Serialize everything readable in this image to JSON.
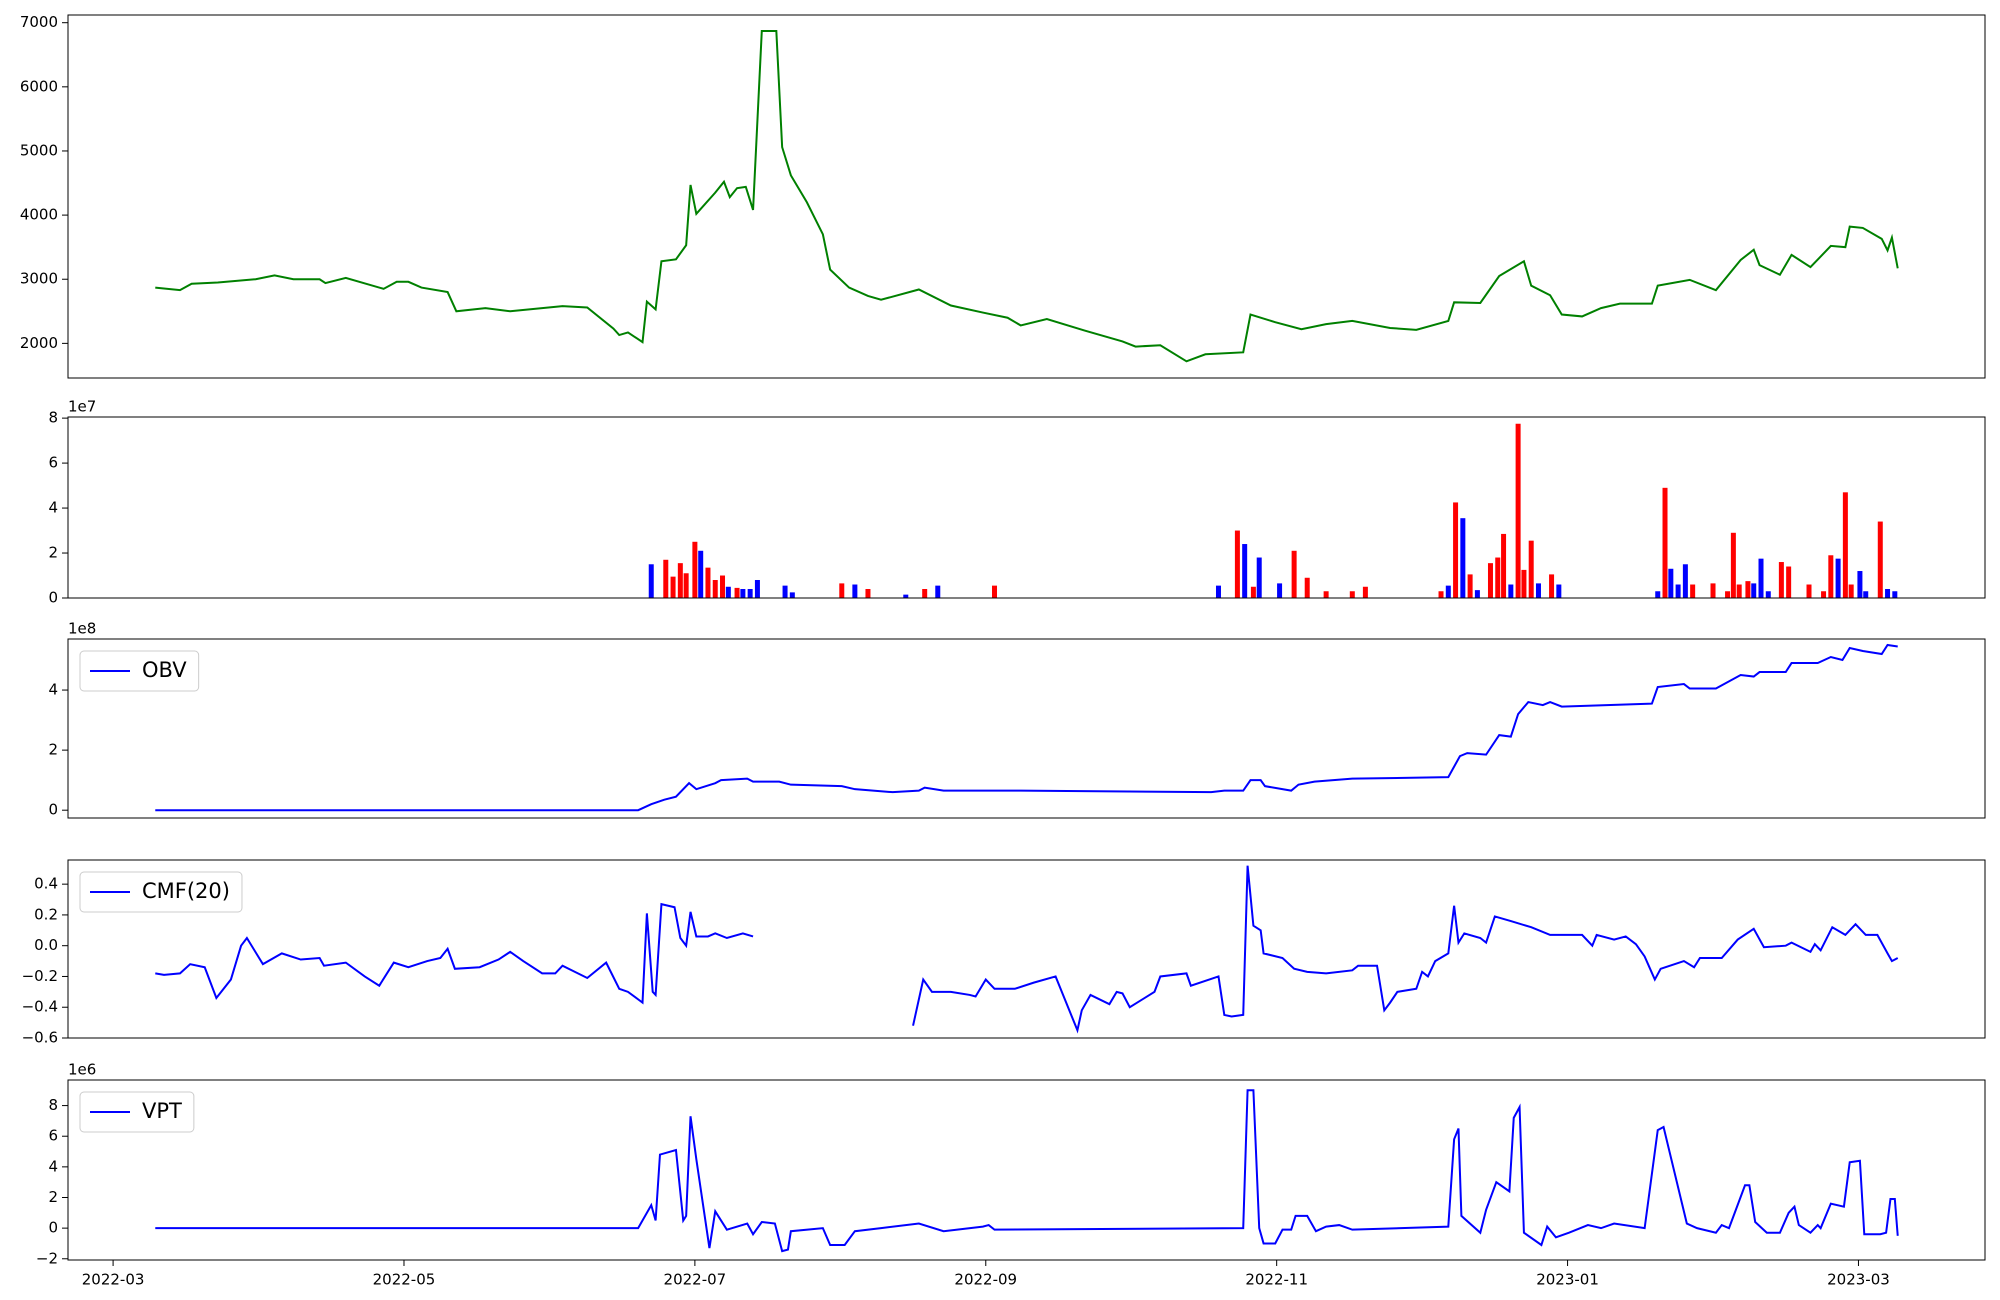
{
  "chart_data": [
    {
      "type": "line",
      "color": "green",
      "x": [
        0.29,
        0.46,
        0.54,
        0.72,
        0.98,
        1.11,
        1.24,
        1.42,
        1.46,
        1.6,
        1.86,
        1.95,
        2.03,
        2.12,
        2.3,
        2.36,
        2.56,
        2.73,
        3.09,
        3.26,
        3.44,
        3.48,
        3.54,
        3.64,
        3.67,
        3.73,
        3.77,
        3.87,
        3.94,
        3.97,
        4.01,
        4.14,
        4.2,
        4.24,
        4.29,
        4.35,
        4.4,
        4.46,
        4.56,
        4.6,
        4.66,
        4.77,
        4.88,
        4.93,
        5.06,
        5.19,
        5.28,
        5.54,
        5.76,
        5.98,
        6.15,
        6.24,
        6.42,
        6.68,
        6.94,
        7.03,
        7.2,
        7.38,
        7.51,
        7.77,
        7.82,
        7.99,
        8.17,
        8.34,
        8.52,
        8.78,
        8.96,
        9.18,
        9.22,
        9.4,
        9.53,
        9.7,
        9.75,
        9.88,
        9.96,
        10.1,
        10.23,
        10.36,
        10.58,
        10.62,
        10.84,
        11.02,
        11.19,
        11.28,
        11.32,
        11.46,
        11.54,
        11.67,
        11.73,
        11.81,
        11.91,
        11.94,
        12.03,
        12.16,
        12.2,
        12.23,
        12.27
      ],
      "values": [
        2870,
        2830,
        2930,
        2950,
        3000,
        3060,
        3000,
        3000,
        2940,
        3020,
        2850,
        2960,
        2960,
        2870,
        2800,
        2500,
        2550,
        2500,
        2580,
        2560,
        2230,
        2130,
        2170,
        2020,
        2650,
        2530,
        3280,
        3310,
        3530,
        4470,
        4020,
        4350,
        4520,
        4280,
        4420,
        4440,
        4080,
        6870,
        6870,
        5060,
        4620,
        4200,
        3700,
        3150,
        2870,
        2740,
        2680,
        2840,
        2590,
        2480,
        2400,
        2280,
        2380,
        2200,
        2030,
        1950,
        1970,
        1720,
        1830,
        1860,
        2450,
        2330,
        2220,
        2300,
        2350,
        2240,
        2210,
        2350,
        2640,
        2630,
        3050,
        3280,
        2900,
        2750,
        2450,
        2420,
        2550,
        2620,
        2620,
        2900,
        2990,
        2830,
        3300,
        3460,
        3220,
        3070,
        3380,
        3190,
        3330,
        3520,
        3500,
        3820,
        3800,
        3630,
        3450,
        3650,
        3170
      ],
      "xlim": [
        -0.31,
        12.87
      ],
      "ylim": [
        1460,
        7120
      ],
      "yticks": [
        2000,
        3000,
        4000,
        5000,
        6000,
        7000
      ]
    },
    {
      "type": "bar",
      "offset_label": "1e7",
      "x": [
        3.7,
        3.8,
        3.85,
        3.9,
        3.94,
        4.0,
        4.04,
        4.09,
        4.14,
        4.19,
        4.23,
        4.29,
        4.33,
        4.38,
        4.43,
        4.62,
        4.67,
        5.01,
        5.1,
        5.19,
        5.45,
        5.58,
        5.67,
        6.06,
        7.6,
        7.73,
        7.78,
        7.84,
        7.88,
        8.02,
        8.12,
        8.21,
        8.34,
        8.52,
        8.61,
        9.13,
        9.18,
        9.23,
        9.28,
        9.33,
        9.38,
        9.47,
        9.52,
        9.56,
        9.61,
        9.66,
        9.7,
        9.75,
        9.8,
        9.89,
        9.94,
        10.62,
        10.67,
        10.71,
        10.76,
        10.81,
        10.86,
        11.0,
        11.1,
        11.14,
        11.18,
        11.24,
        11.28,
        11.33,
        11.38,
        11.47,
        11.52,
        11.66,
        11.76,
        11.81,
        11.86,
        11.91,
        11.95,
        12.01,
        12.05,
        12.15,
        12.2,
        12.25
      ],
      "values": [
        15000000,
        17000000,
        9500000,
        15500000,
        11000000,
        25000000,
        21000000,
        13500000,
        8000000,
        10000000,
        5000000,
        4500000,
        4000000,
        4000000,
        8000000,
        5500000,
        2500000,
        6500000,
        6000000,
        4000000,
        1500000,
        4000000,
        5500000,
        5500000,
        5500000,
        30000000,
        24000000,
        5000000,
        18000000,
        6500000,
        21000000,
        9000000,
        3000000,
        3000000,
        5000000,
        3000000,
        5500000,
        42500000,
        35500000,
        10500000,
        3500000,
        15500000,
        18000000,
        28500000,
        6000000,
        77500000,
        12500000,
        25500000,
        6500000,
        10500000,
        6000000,
        3000000,
        49000000,
        13000000,
        6000000,
        15000000,
        6000000,
        6500000,
        3000000,
        29000000,
        6000000,
        7500000,
        6500000,
        17500000,
        3000000,
        16000000,
        14000000,
        6000000,
        3000000,
        19000000,
        17500000,
        47000000,
        6000000,
        12000000,
        3000000,
        34000000,
        4000000,
        3000000
      ],
      "colors": [
        "blue",
        "red",
        "red",
        "red",
        "red",
        "red",
        "blue",
        "red",
        "red",
        "red",
        "blue",
        "red",
        "blue",
        "blue",
        "blue",
        "blue",
        "blue",
        "red",
        "blue",
        "red",
        "blue",
        "red",
        "blue",
        "red",
        "blue",
        "red",
        "blue",
        "red",
        "blue",
        "blue",
        "red",
        "red",
        "red",
        "red",
        "red",
        "red",
        "blue",
        "red",
        "blue",
        "red",
        "blue",
        "red",
        "red",
        "red",
        "blue",
        "red",
        "red",
        "red",
        "blue",
        "red",
        "blue",
        "blue",
        "red",
        "blue",
        "blue",
        "blue",
        "red",
        "red",
        "red",
        "red",
        "red",
        "red",
        "blue",
        "blue",
        "blue",
        "red",
        "red",
        "red",
        "red",
        "red",
        "blue",
        "red",
        "red",
        "blue",
        "blue",
        "red",
        "blue",
        "blue"
      ],
      "xlim": [
        -0.31,
        12.87
      ],
      "ylim": [
        0,
        80500000
      ],
      "yticks": [
        {
          "value": 0,
          "label": "0"
        },
        {
          "value": 20000000,
          "label": "2"
        },
        {
          "value": 40000000,
          "label": "4"
        },
        {
          "value": 60000000,
          "label": "6"
        },
        {
          "value": 80000000,
          "label": "8"
        }
      ]
    },
    {
      "type": "line",
      "offset_label": "1e8",
      "legend": "upper left",
      "x": [
        0.29,
        3.61,
        3.7,
        3.79,
        3.87,
        3.96,
        4.01,
        4.14,
        4.18,
        4.36,
        4.4,
        4.58,
        4.66,
        5.01,
        5.1,
        5.36,
        5.54,
        5.58,
        5.71,
        6.24,
        7.55,
        7.64,
        7.77,
        7.82,
        7.89,
        7.92,
        8.1,
        8.15,
        8.26,
        8.52,
        9.18,
        9.26,
        9.31,
        9.44,
        9.53,
        9.61,
        9.66,
        9.73,
        9.83,
        9.88,
        9.96,
        10.27,
        10.58,
        10.62,
        10.8,
        10.84,
        11.02,
        11.19,
        11.28,
        11.32,
        11.5,
        11.54,
        11.72,
        11.81,
        11.89,
        11.94,
        12.03,
        12.16,
        12.2,
        12.27
      ],
      "series": [
        {
          "name": "OBV",
          "color": "blue",
          "values": [
            0,
            0,
            20000000,
            35000000,
            45000000,
            90000000,
            70000000,
            90000000,
            100000000,
            105000000,
            95000000,
            95000000,
            85000000,
            80000000,
            70000000,
            60000000,
            65000000,
            75000000,
            65000000,
            65000000,
            60000000,
            65000000,
            65000000,
            100000000,
            100000000,
            80000000,
            65000000,
            85000000,
            95000000,
            105000000,
            110000000,
            180000000,
            190000000,
            185000000,
            250000000,
            245000000,
            320000000,
            360000000,
            350000000,
            360000000,
            345000000,
            350000000,
            355000000,
            410000000,
            420000000,
            405000000,
            405000000,
            450000000,
            445000000,
            460000000,
            460000000,
            490000000,
            490000000,
            510000000,
            500000000,
            540000000,
            530000000,
            520000000,
            550000000,
            545000000
          ]
        }
      ],
      "xlim": [
        -0.31,
        12.87
      ],
      "ylim": [
        -26000000,
        570000000
      ],
      "yticks": [
        {
          "value": 0,
          "label": "0"
        },
        {
          "value": 200000000,
          "label": "2"
        },
        {
          "value": 400000000,
          "label": "4"
        }
      ]
    },
    {
      "type": "line",
      "legend": "upper left",
      "x": [
        0.29,
        0.35,
        0.46,
        0.53,
        0.63,
        0.71,
        0.81,
        0.88,
        0.92,
        1.03,
        1.16,
        1.29,
        1.42,
        1.45,
        1.6,
        1.73,
        1.83,
        1.93,
        2.03,
        2.16,
        2.25,
        2.3,
        2.35,
        2.52,
        2.65,
        2.73,
        2.82,
        2.95,
        3.04,
        3.09,
        3.26,
        3.39,
        3.48,
        3.54,
        3.64,
        3.67,
        3.71,
        3.73,
        3.77,
        3.86,
        3.9,
        3.94,
        3.97,
        4.01,
        4.09,
        4.14,
        4.22,
        4.33,
        4.4,
        4.93,
        5.5,
        5.57,
        5.63,
        5.76,
        5.89,
        5.93,
        6.0,
        6.06,
        6.2,
        6.33,
        6.48,
        6.63,
        6.66,
        6.72,
        6.85,
        6.9,
        6.94,
        6.99,
        7.16,
        7.2,
        7.38,
        7.41,
        7.6,
        7.64,
        7.69,
        7.77,
        7.8,
        7.84,
        7.89,
        7.91,
        8.04,
        8.12,
        8.21,
        8.34,
        8.52,
        8.56,
        8.69,
        8.74,
        8.78,
        8.83,
        8.96,
        9.0,
        9.04,
        9.09,
        9.18,
        9.22,
        9.25,
        9.29,
        9.4,
        9.44,
        9.5,
        9.61,
        9.75,
        9.88,
        10.1,
        10.17,
        10.2,
        10.32,
        10.4,
        10.47,
        10.53,
        10.6,
        10.64,
        10.8,
        10.87,
        10.91,
        11.06,
        11.17,
        11.28,
        11.35,
        11.5,
        11.54,
        11.67,
        11.7,
        11.74,
        11.82,
        11.91,
        11.98,
        12.05,
        12.13,
        12.2,
        12.23,
        12.27
      ],
      "series": [
        {
          "name": "CMF(20)",
          "color": "blue",
          "values": [
            -0.18,
            -0.19,
            -0.18,
            -0.12,
            -0.14,
            -0.34,
            -0.22,
            0.0,
            0.05,
            -0.12,
            -0.05,
            -0.09,
            -0.08,
            -0.13,
            -0.11,
            -0.2,
            -0.26,
            -0.11,
            -0.14,
            -0.1,
            -0.08,
            -0.02,
            -0.15,
            -0.14,
            -0.09,
            -0.04,
            -0.1,
            -0.18,
            -0.18,
            -0.13,
            -0.21,
            -0.11,
            -0.28,
            -0.3,
            -0.37,
            0.21,
            -0.3,
            -0.32,
            0.27,
            0.25,
            0.05,
            0.0,
            0.22,
            0.06,
            0.06,
            0.08,
            0.05,
            0.08,
            0.06,
            null,
            -0.52,
            -0.22,
            -0.3,
            -0.3,
            -0.32,
            -0.33,
            -0.22,
            -0.28,
            -0.28,
            -0.24,
            -0.2,
            -0.55,
            -0.42,
            -0.32,
            -0.38,
            -0.3,
            -0.31,
            -0.4,
            -0.3,
            -0.2,
            -0.18,
            -0.26,
            -0.2,
            -0.45,
            -0.46,
            -0.45,
            0.52,
            0.13,
            0.1,
            -0.05,
            -0.08,
            -0.15,
            -0.17,
            -0.18,
            -0.16,
            -0.13,
            -0.13,
            -0.42,
            -0.37,
            -0.3,
            -0.28,
            -0.17,
            -0.2,
            -0.1,
            -0.05,
            0.26,
            0.02,
            0.08,
            0.05,
            0.02,
            0.19,
            0.16,
            0.12,
            0.07,
            0.07,
            0.0,
            0.07,
            0.04,
            0.06,
            0.01,
            -0.07,
            -0.22,
            -0.15,
            -0.1,
            -0.14,
            -0.08,
            -0.08,
            0.04,
            0.11,
            -0.01,
            0.0,
            0.02,
            -0.04,
            0.01,
            -0.03,
            0.12,
            0.07,
            0.14,
            0.07,
            0.07,
            -0.05,
            -0.1,
            -0.08
          ]
        }
      ],
      "xlim": [
        -0.31,
        12.87
      ],
      "ylim": [
        -0.6,
        0.557
      ],
      "yticks": [
        {
          "value": -0.6,
          "label": "−0.6"
        },
        {
          "value": -0.4,
          "label": "−0.4"
        },
        {
          "value": -0.2,
          "label": "−0.2"
        },
        {
          "value": 0,
          "label": "0.0"
        },
        0.2,
        0.4
      ]
    },
    {
      "type": "line",
      "offset_label": "1e6",
      "legend": "upper left",
      "x": [
        0.29,
        3.61,
        3.7,
        3.73,
        3.76,
        3.87,
        3.92,
        3.94,
        3.97,
        4.01,
        4.1,
        4.14,
        4.22,
        4.36,
        4.4,
        4.46,
        4.55,
        4.6,
        4.64,
        4.66,
        4.88,
        4.93,
        5.03,
        5.1,
        5.28,
        5.54,
        5.71,
        5.98,
        6.02,
        6.06,
        7.77,
        7.8,
        7.84,
        7.88,
        7.91,
        7.99,
        8.04,
        8.1,
        8.13,
        8.21,
        8.27,
        8.34,
        8.43,
        8.52,
        9.18,
        9.22,
        9.25,
        9.27,
        9.4,
        9.44,
        9.51,
        9.6,
        9.63,
        9.67,
        9.7,
        9.82,
        9.86,
        9.92,
        10.01,
        10.14,
        10.23,
        10.32,
        10.53,
        10.62,
        10.66,
        10.82,
        10.89,
        11.02,
        11.06,
        11.11,
        11.22,
        11.25,
        11.29,
        11.37,
        11.46,
        11.52,
        11.56,
        11.59,
        11.67,
        11.72,
        11.74,
        11.81,
        11.9,
        11.94,
        12.01,
        12.04,
        12.15,
        12.19,
        12.22,
        12.25,
        12.27
      ],
      "series": [
        {
          "name": "VPT",
          "color": "blue",
          "values": [
            0,
            0,
            1500000,
            500000,
            4800000,
            5100000,
            500000,
            800000,
            7300000,
            4500000,
            -1300000,
            1100000,
            -100000,
            300000,
            -400000,
            400000,
            300000,
            -1500000,
            -1400000,
            -200000,
            0,
            -1100000,
            -1100000,
            -200000,
            0,
            300000,
            -200000,
            100000,
            200000,
            -100000,
            0,
            9000000,
            9000000,
            0,
            -1000000,
            -1000000,
            -100000,
            -100000,
            800000,
            800000,
            -200000,
            100000,
            200000,
            -100000,
            100000,
            5800000,
            6500000,
            800000,
            -300000,
            1200000,
            3000000,
            2400000,
            7200000,
            7900000,
            -300000,
            -1100000,
            100000,
            -600000,
            -300000,
            200000,
            0,
            300000,
            0,
            6400000,
            6600000,
            300000,
            0,
            -300000,
            200000,
            0,
            2800000,
            2800000,
            400000,
            -300000,
            -300000,
            1000000,
            1400000,
            200000,
            -300000,
            200000,
            0,
            1600000,
            1400000,
            4300000,
            4400000,
            -400000,
            -400000,
            -300000,
            1900000,
            1900000,
            -500000
          ]
        }
      ],
      "xlim": [
        -0.31,
        12.87
      ],
      "ylim": [
        -2080000,
        9670000
      ],
      "yticks": [
        {
          "value": -2000000,
          "label": "−2"
        },
        {
          "value": 0,
          "label": "0"
        },
        {
          "value": 2000000,
          "label": "2"
        },
        {
          "value": 4000000,
          "label": "4"
        },
        {
          "value": 6000000,
          "label": "6"
        },
        {
          "value": 8000000,
          "label": "8"
        }
      ],
      "xticks": [
        {
          "value": 0,
          "label": "2022-03"
        },
        {
          "value": 2,
          "label": "2022-05"
        },
        {
          "value": 4,
          "label": "2022-07"
        },
        {
          "value": 6,
          "label": "2022-09"
        },
        {
          "value": 8,
          "label": "2022-11"
        },
        {
          "value": 10,
          "label": "2023-01"
        },
        {
          "value": 12,
          "label": "2023-03"
        }
      ]
    }
  ]
}
